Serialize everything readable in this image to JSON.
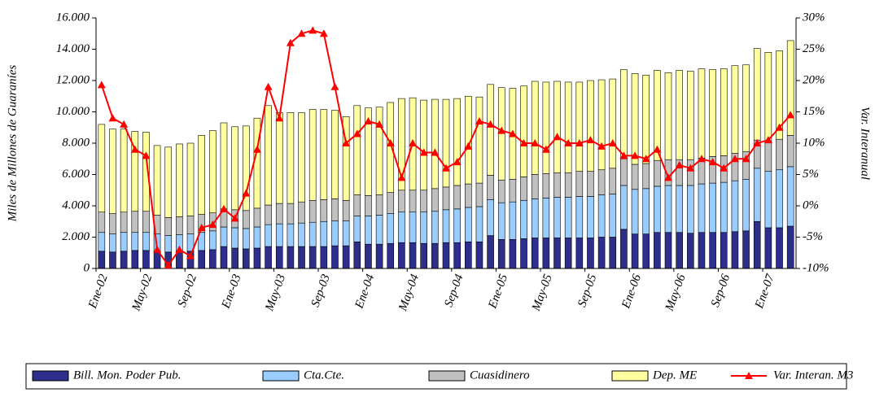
{
  "chart_data": {
    "type": "bar",
    "stacked": true,
    "ylabel": "Miles de Millones de Guaraníes",
    "y2label": "Var. Interanual",
    "categories": [
      "Ene-02",
      null,
      null,
      null,
      "May-02",
      null,
      null,
      null,
      "Sep-02",
      null,
      null,
      null,
      "Ene-03",
      null,
      null,
      null,
      "May-03",
      null,
      null,
      null,
      "Sep-03",
      null,
      null,
      null,
      "Ene-04",
      null,
      null,
      null,
      "May-04",
      null,
      null,
      null,
      "Sep-04",
      null,
      null,
      null,
      "Ene-05",
      null,
      null,
      null,
      "May-05",
      null,
      null,
      null,
      "Sep-05",
      null,
      null,
      null,
      "Ene-06",
      null,
      null,
      null,
      "May-06",
      null,
      null,
      null,
      "Sep-06",
      null,
      null,
      null,
      "Ene-07",
      null,
      null
    ],
    "series": [
      {
        "name": "Bill. Mon. Poder Pub.",
        "color": "#2e2e8c",
        "values": [
          1100,
          1050,
          1100,
          1150,
          1150,
          1100,
          1050,
          1100,
          1100,
          1150,
          1200,
          1400,
          1300,
          1250,
          1300,
          1400,
          1400,
          1400,
          1400,
          1400,
          1400,
          1450,
          1450,
          1700,
          1550,
          1550,
          1600,
          1650,
          1650,
          1600,
          1600,
          1650,
          1650,
          1700,
          1700,
          2100,
          1850,
          1850,
          1900,
          1950,
          1950,
          1950,
          1950,
          1950,
          1950,
          2000,
          2000,
          2500,
          2200,
          2200,
          2300,
          2300,
          2300,
          2250,
          2300,
          2300,
          2300,
          2350,
          2400,
          3000,
          2600,
          2600,
          2700
        ]
      },
      {
        "name": "Cta.Cte.",
        "color": "#99ccff",
        "values": [
          1200,
          1150,
          1200,
          1150,
          1150,
          1100,
          1050,
          1050,
          1100,
          1150,
          1200,
          1250,
          1300,
          1300,
          1350,
          1400,
          1450,
          1450,
          1500,
          1550,
          1600,
          1600,
          1600,
          1650,
          1800,
          1850,
          1900,
          1950,
          1950,
          2000,
          2050,
          2100,
          2150,
          2200,
          2250,
          2300,
          2350,
          2400,
          2450,
          2500,
          2550,
          2600,
          2600,
          2650,
          2650,
          2700,
          2750,
          2800,
          2850,
          2900,
          2950,
          3000,
          3000,
          3050,
          3100,
          3150,
          3200,
          3250,
          3300,
          3400,
          3600,
          3700,
          3800
        ]
      },
      {
        "name": "Cuasidinero",
        "color": "#c0c0c0",
        "values": [
          1300,
          1300,
          1300,
          1350,
          1350,
          1200,
          1150,
          1150,
          1150,
          1150,
          1150,
          1150,
          1150,
          1150,
          1200,
          1250,
          1300,
          1300,
          1350,
          1400,
          1400,
          1400,
          1300,
          1350,
          1300,
          1300,
          1350,
          1400,
          1400,
          1400,
          1450,
          1450,
          1500,
          1500,
          1500,
          1550,
          1450,
          1450,
          1500,
          1550,
          1550,
          1550,
          1550,
          1600,
          1600,
          1600,
          1650,
          1700,
          1600,
          1600,
          1650,
          1650,
          1650,
          1650,
          1650,
          1700,
          1700,
          1750,
          1750,
          1800,
          1900,
          1950,
          2000
        ]
      },
      {
        "name": "Dep. ME",
        "color": "#ffffa0",
        "values": [
          5600,
          5400,
          5300,
          5100,
          5050,
          4450,
          4500,
          4650,
          4650,
          5050,
          5250,
          5500,
          5300,
          5400,
          5750,
          6350,
          5800,
          5800,
          5700,
          5800,
          5750,
          5650,
          5350,
          5700,
          5600,
          5600,
          5750,
          5850,
          5900,
          5750,
          5700,
          5600,
          5550,
          5600,
          5500,
          5800,
          5900,
          5800,
          5800,
          5950,
          5850,
          5850,
          5800,
          5700,
          5800,
          5750,
          5700,
          5700,
          5800,
          5650,
          5750,
          5550,
          5700,
          5650,
          5700,
          5550,
          5550,
          5600,
          5550,
          5850,
          5700,
          5650,
          6050
        ]
      },
      {
        "name": "Var. Interan. M3",
        "type": "line",
        "axis": "y2",
        "color": "#ff0000",
        "values": [
          19.3,
          14,
          13,
          9,
          8,
          -7,
          -9.5,
          -7,
          -8,
          -3.5,
          -3,
          -0.5,
          -2,
          2,
          9,
          19,
          14,
          26,
          27.5,
          28,
          27.5,
          19,
          10,
          11.5,
          13.5,
          13,
          10,
          4.5,
          10,
          8.5,
          8.5,
          6,
          7,
          9.5,
          13.5,
          13,
          12,
          11.5,
          10,
          10,
          9,
          11,
          10,
          10,
          10.5,
          9.5,
          10,
          8,
          8,
          7.5,
          9,
          4.5,
          6.5,
          6,
          7.5,
          7,
          6,
          7.5,
          7.5,
          10,
          10.5,
          12.5,
          14.5
        ]
      }
    ],
    "ylim": [
      0,
      16000
    ],
    "yticks": [
      0,
      {
        "value": 2000,
        "label": "2.000"
      },
      {
        "value": 4000,
        "label": "4.000"
      },
      {
        "value": 6000,
        "label": "6.000"
      },
      {
        "value": 8000,
        "label": "8.000"
      },
      {
        "value": 10000,
        "label": "10.000"
      },
      {
        "value": 12000,
        "label": "12.000"
      },
      {
        "value": 14000,
        "label": "14.000"
      },
      {
        "value": 16000,
        "label": "16.000"
      }
    ],
    "y2lim": [
      -10,
      30
    ],
    "y2ticks": [
      {
        "value": -10,
        "label": "-10%"
      },
      {
        "value": -5,
        "label": "-5%"
      },
      {
        "value": 0,
        "label": "0%"
      },
      {
        "value": 5,
        "label": "5%"
      },
      {
        "value": 10,
        "label": "10%"
      },
      {
        "value": 15,
        "label": "15%"
      },
      {
        "value": 20,
        "label": "20%"
      },
      {
        "value": 25,
        "label": "25%"
      },
      {
        "value": 30,
        "label": "30%"
      }
    ],
    "legend": "bottom"
  }
}
